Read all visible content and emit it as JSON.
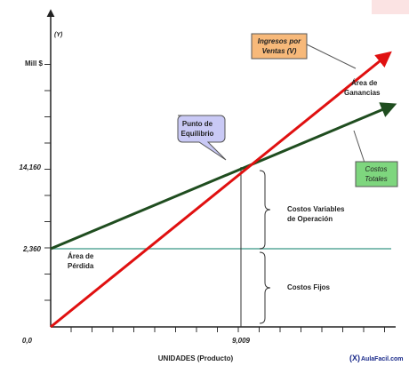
{
  "axis": {
    "y_unit": "(Y)",
    "y_label": "Mill $",
    "y_tick_high": "14,160",
    "y_tick_low": "2,360",
    "origin": "0,0",
    "x_tick": "9,009",
    "x_label": "UNIDADES (Producto)"
  },
  "callouts": {
    "revenue": [
      "Ingresos por",
      "Ventas (V)"
    ],
    "break_even": [
      "Punto de",
      "Equilibrio"
    ],
    "total_costs": [
      "Costos",
      "Totales"
    ]
  },
  "areas": {
    "profit": [
      "Área de",
      "Ganancias"
    ],
    "loss": [
      "Área de",
      "Pérdida"
    ],
    "variable_costs": [
      "Costos Variables",
      "de Operación"
    ],
    "fixed_costs": "Costos Fijos"
  },
  "footer": {
    "logo": "(X)",
    "brand": "AulaFacil.com"
  }
}
